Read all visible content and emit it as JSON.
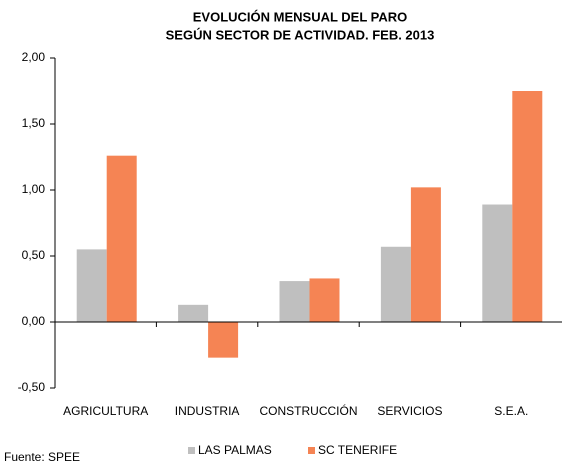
{
  "chart_data": {
    "type": "bar",
    "title": [
      "EVOLUCIÓN MENSUAL DEL PARO",
      "SEGÚN SECTOR DE ACTIVIDAD. FEB. 2013"
    ],
    "categories": [
      "AGRICULTURA",
      "INDUSTRIA",
      "CONSTRUCCIÓN",
      "SERVICIOS",
      "S.E.A."
    ],
    "series": [
      {
        "name": "LAS PALMAS",
        "color": "#bfbfbf",
        "values": [
          0.55,
          0.13,
          0.31,
          0.57,
          0.89
        ]
      },
      {
        "name": "SC TENERIFE",
        "color": "#f58454",
        "values": [
          1.26,
          -0.27,
          0.33,
          1.02,
          1.75
        ]
      }
    ],
    "ylim": [
      -0.5,
      2
    ],
    "yticks": [
      {
        "value": -0.5,
        "label": "-0,50"
      },
      {
        "value": 0,
        "label": "0,00"
      },
      {
        "value": 0.5,
        "label": "0,50"
      },
      {
        "value": 1,
        "label": "1,00"
      },
      {
        "value": 1.5,
        "label": "1,50"
      },
      {
        "value": 2,
        "label": "2,00"
      }
    ],
    "legend": "bottom",
    "source": "Fuente: SPEE"
  }
}
